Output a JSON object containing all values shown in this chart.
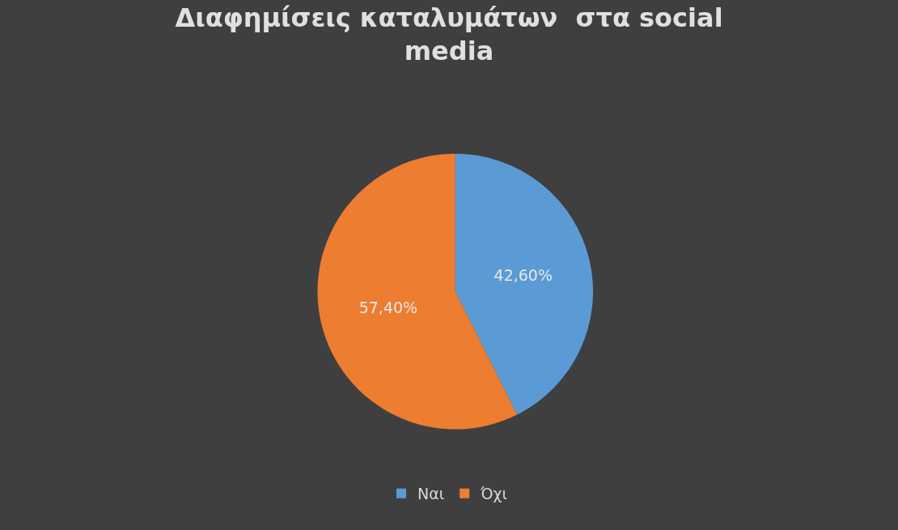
{
  "chart_data": {
    "type": "pie",
    "title": "Διαφημίσεις καταλυμάτων  στα social media",
    "categories": [
      "Ναι",
      "Όχι"
    ],
    "values": [
      42.6,
      57.4
    ],
    "value_labels": [
      "42,60%",
      "57,40%"
    ],
    "colors": [
      "#5b9bd5",
      "#ed7d31"
    ],
    "legend": "bottom"
  }
}
